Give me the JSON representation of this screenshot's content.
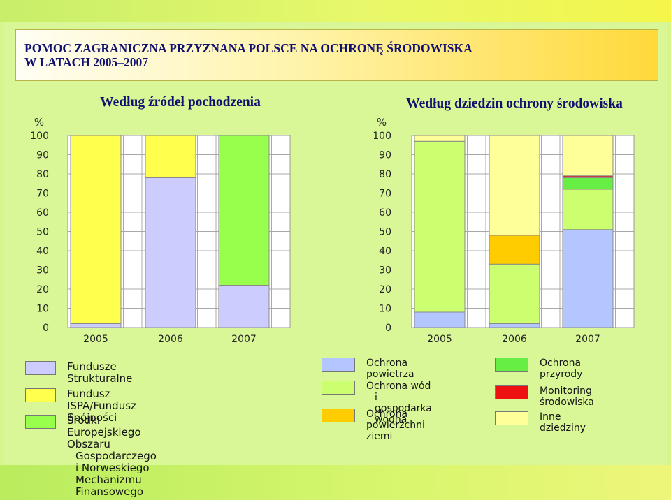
{
  "title": {
    "line1": "POMOC ZAGRANICZNA PRZYZNANA POLSCE NA OCHRONĘ ŚRODOWISKA",
    "line2": "W LATACH 2005–2007"
  },
  "chart_data": [
    {
      "type": "bar",
      "stacked": true,
      "title": "Według źródeł pochodzenia",
      "ylabel": "%",
      "ylim": [
        0,
        100
      ],
      "yticks": [
        "0",
        "10",
        "20",
        "30",
        "40",
        "50",
        "60",
        "70",
        "80",
        "90",
        "100"
      ],
      "categories": [
        "2005",
        "2006",
        "2007"
      ],
      "grid": true,
      "series": [
        {
          "name": "Fundusze Strukturalne",
          "color": "#ccccff",
          "values": [
            2,
            78,
            22
          ]
        },
        {
          "name": "Fundusz ISPA/Fundusz Spójności",
          "color": "#ffff4d",
          "values": [
            98,
            22,
            0
          ]
        },
        {
          "name": "Środki Europejskiego Obszaru Gospodarczego i Norweskiego Mechanizmu Finansowego",
          "color": "#99ff4d",
          "values": [
            0,
            0,
            78
          ]
        }
      ]
    },
    {
      "type": "bar",
      "stacked": true,
      "title": "Według dziedzin ochrony środowiska",
      "ylabel": "%",
      "ylim": [
        0,
        100
      ],
      "yticks": [
        "0",
        "10",
        "20",
        "30",
        "40",
        "50",
        "60",
        "70",
        "80",
        "90",
        "100"
      ],
      "categories": [
        "2005",
        "2006",
        "2007"
      ],
      "grid": true,
      "series": [
        {
          "name": "Ochrona powietrza",
          "color": "#b3c6ff",
          "values": [
            8,
            2,
            51
          ]
        },
        {
          "name": "Ochrona wód i gospodarka wodna",
          "color": "#ccff70",
          "values": [
            89,
            31,
            21
          ]
        },
        {
          "name": "Ochrona powierzchni ziemi",
          "color": "#ffcc00",
          "values": [
            0,
            15,
            0
          ]
        },
        {
          "name": "Ochrona przyrody",
          "color": "#66ee44",
          "values": [
            0,
            0,
            6
          ]
        },
        {
          "name": "Monitoring środowiska",
          "color": "#ee1111",
          "values": [
            0,
            0,
            1
          ]
        },
        {
          "name": "Inne dziedziny",
          "color": "#ffff99",
          "values": [
            3,
            52,
            21
          ]
        }
      ]
    }
  ],
  "legend_left": [
    {
      "lines": [
        "Fundusze Strukturalne"
      ],
      "color": "#ccccff"
    },
    {
      "lines": [
        "Fundusz ISPA/Fundusz Spójności"
      ],
      "color": "#ffff4d"
    },
    {
      "lines": [
        "Środki Europejskiego Obszaru",
        "Gospodarczego i Norweskiego",
        "Mechanizmu Finansowego"
      ],
      "color": "#99ff4d"
    }
  ],
  "legend_right": [
    {
      "lines": [
        "Ochrona powietrza"
      ],
      "color": "#b3c6ff"
    },
    {
      "lines": [
        "Ochrona wód",
        "i gospodarka wodna"
      ],
      "color": "#ccff70"
    },
    {
      "lines": [
        "Ochrona powierzchni",
        "ziemi"
      ],
      "color": "#ffcc00"
    },
    {
      "lines": [
        "Ochrona przyrody"
      ],
      "color": "#66ee44"
    },
    {
      "lines": [
        "Monitoring środowiska"
      ],
      "color": "#ee1111"
    },
    {
      "lines": [
        "Inne dziedziny"
      ],
      "color": "#ffff99"
    }
  ]
}
